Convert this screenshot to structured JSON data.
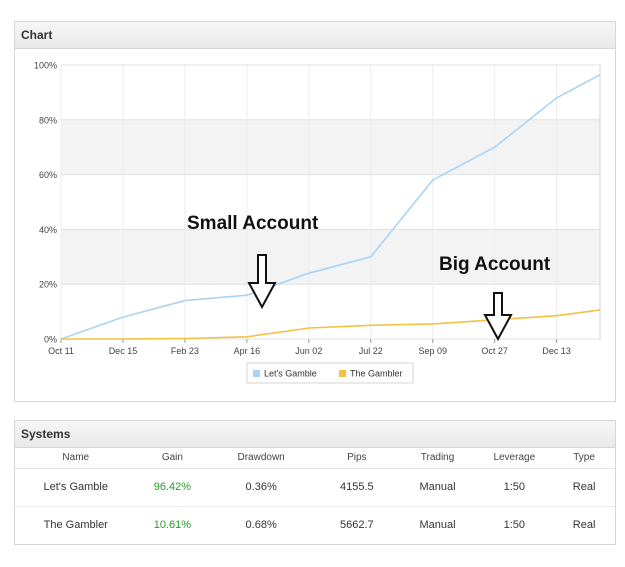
{
  "chart_panel": {
    "title": "Chart"
  },
  "systems_panel": {
    "title": "Systems"
  },
  "annotations": {
    "small": "Small Account",
    "big": "Big Account"
  },
  "colors": {
    "lets_gamble": "#a9d3f5",
    "the_gambler": "#f4c242"
  },
  "chart_data": {
    "type": "line",
    "title": "",
    "xlabel": "",
    "ylabel": "",
    "x_ticks": [
      "Oct 11",
      "Dec 15",
      "Feb 23",
      "Apr 16",
      "Jun 02",
      "Jul 22",
      "Sep 09",
      "Oct 27",
      "Dec 13"
    ],
    "y_ticks": [
      "0%",
      "20%",
      "40%",
      "60%",
      "80%",
      "100%"
    ],
    "ylim": [
      0,
      100
    ],
    "grid": true,
    "legend": "bottom",
    "x": [
      0,
      1,
      2,
      3,
      4,
      5,
      6,
      7,
      8,
      8.7
    ],
    "series": [
      {
        "name": "Let's Gamble",
        "values": [
          0,
          8,
          14,
          16,
          24,
          30,
          58,
          70,
          88,
          96.42
        ]
      },
      {
        "name": "The Gambler",
        "values": [
          0,
          0,
          0.2,
          0.8,
          4,
          5,
          5.5,
          7,
          8.5,
          10.61
        ]
      }
    ]
  },
  "systems": {
    "columns": [
      "Name",
      "Gain",
      "Drawdown",
      "Pips",
      "Trading",
      "Leverage",
      "Type"
    ],
    "rows": [
      [
        "Let's Gamble",
        "96.42%",
        "0.36%",
        "4155.5",
        "Manual",
        "1:50",
        "Real"
      ],
      [
        "The Gambler",
        "10.61%",
        "0.68%",
        "5662.7",
        "Manual",
        "1:50",
        "Real"
      ]
    ]
  }
}
